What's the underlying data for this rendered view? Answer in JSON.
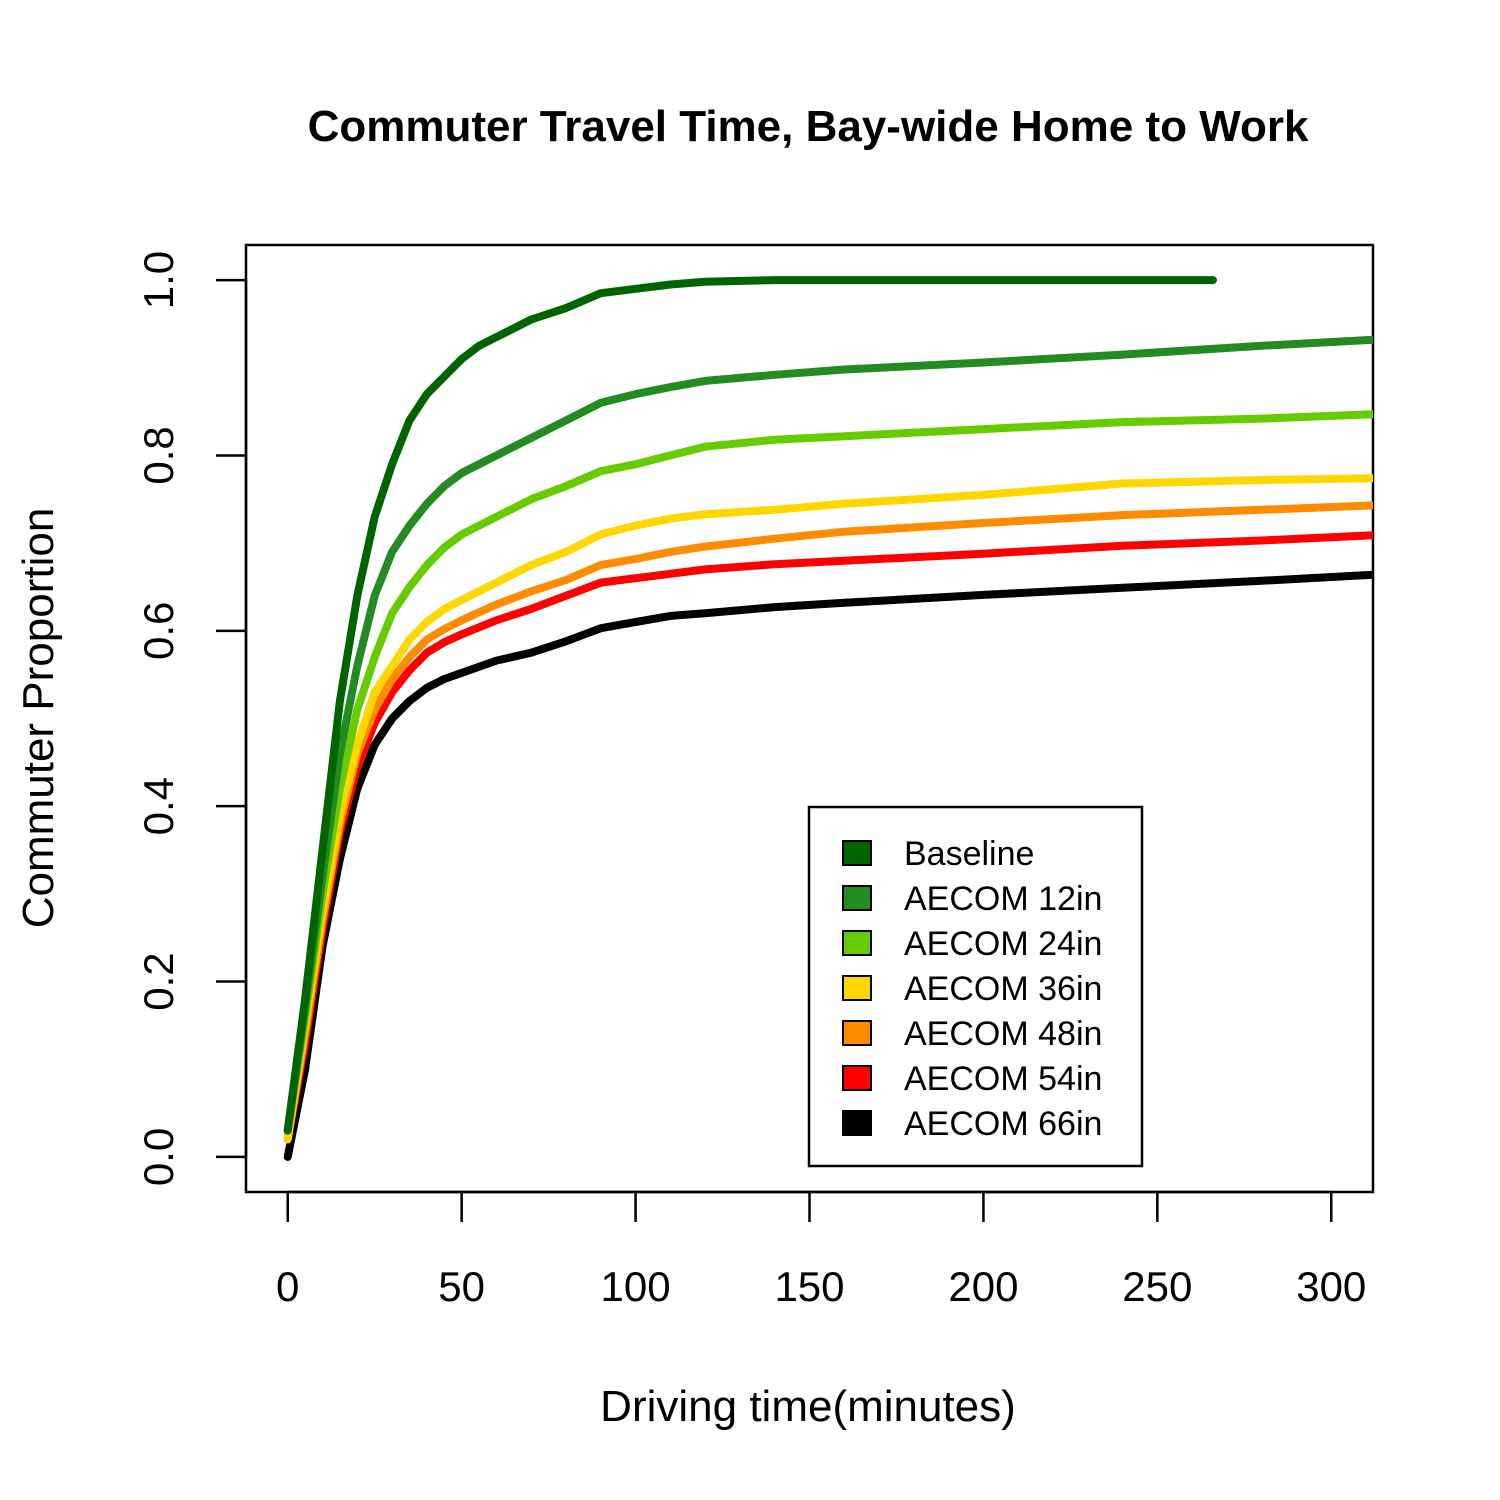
{
  "chart_data": {
    "type": "line",
    "title": "Commuter Travel Time, Bay-wide Home to Work",
    "xlabel": "Driving time(minutes)",
    "ylabel": "Commuter Proportion",
    "xlim": [
      -12,
      312
    ],
    "ylim": [
      -0.04,
      1.04
    ],
    "x_ticks": [
      0,
      50,
      100,
      150,
      200,
      250,
      300
    ],
    "y_ticks": [
      0.0,
      0.2,
      0.4,
      0.6,
      0.8,
      1.0
    ],
    "y_tick_labels": [
      "0.0",
      "0.2",
      "0.4",
      "0.6",
      "0.8",
      "1.0"
    ],
    "grid": false,
    "legend_position": "bottom-right",
    "series": [
      {
        "name": "Baseline",
        "color": "#006400",
        "x": [
          0,
          5,
          10,
          15,
          20,
          25,
          30,
          35,
          40,
          45,
          50,
          55,
          60,
          70,
          80,
          90,
          100,
          110,
          120,
          140,
          160,
          200,
          240,
          266
        ],
        "y": [
          0.03,
          0.18,
          0.35,
          0.52,
          0.64,
          0.73,
          0.79,
          0.84,
          0.87,
          0.89,
          0.91,
          0.925,
          0.935,
          0.955,
          0.968,
          0.985,
          0.99,
          0.995,
          0.998,
          1.0,
          1.0,
          1.0,
          1.0,
          1.0
        ]
      },
      {
        "name": "AECOM 12in",
        "color": "#228B22",
        "x": [
          0,
          5,
          10,
          15,
          20,
          25,
          30,
          35,
          40,
          45,
          50,
          60,
          70,
          80,
          90,
          100,
          110,
          120,
          140,
          160,
          200,
          240,
          280,
          312
        ],
        "y": [
          0.03,
          0.17,
          0.32,
          0.46,
          0.56,
          0.64,
          0.69,
          0.72,
          0.745,
          0.765,
          0.78,
          0.8,
          0.82,
          0.84,
          0.86,
          0.87,
          0.878,
          0.885,
          0.892,
          0.898,
          0.906,
          0.915,
          0.925,
          0.932
        ]
      },
      {
        "name": "AECOM 24in",
        "color": "#66CC00",
        "x": [
          0,
          5,
          10,
          15,
          20,
          25,
          30,
          35,
          40,
          45,
          50,
          60,
          70,
          80,
          90,
          100,
          110,
          120,
          140,
          160,
          200,
          240,
          280,
          312
        ],
        "y": [
          0.03,
          0.16,
          0.3,
          0.42,
          0.51,
          0.57,
          0.62,
          0.65,
          0.675,
          0.695,
          0.71,
          0.73,
          0.75,
          0.765,
          0.782,
          0.79,
          0.8,
          0.81,
          0.818,
          0.822,
          0.83,
          0.838,
          0.842,
          0.847
        ]
      },
      {
        "name": "AECOM 36in",
        "color": "#FFD700",
        "x": [
          0,
          5,
          10,
          15,
          20,
          25,
          30,
          35,
          40,
          45,
          50,
          60,
          70,
          80,
          90,
          100,
          110,
          120,
          140,
          160,
          200,
          240,
          280,
          312
        ],
        "y": [
          0.02,
          0.15,
          0.28,
          0.39,
          0.47,
          0.53,
          0.56,
          0.59,
          0.61,
          0.625,
          0.635,
          0.655,
          0.675,
          0.69,
          0.71,
          0.72,
          0.728,
          0.733,
          0.738,
          0.745,
          0.755,
          0.768,
          0.772,
          0.774
        ]
      },
      {
        "name": "AECOM 48in",
        "color": "#FF8C00",
        "x": [
          0,
          5,
          10,
          15,
          20,
          25,
          30,
          35,
          40,
          45,
          50,
          60,
          70,
          80,
          90,
          100,
          110,
          120,
          140,
          160,
          200,
          240,
          280,
          312
        ],
        "y": [
          0.02,
          0.14,
          0.27,
          0.38,
          0.46,
          0.51,
          0.545,
          0.57,
          0.59,
          0.602,
          0.612,
          0.63,
          0.645,
          0.658,
          0.675,
          0.682,
          0.69,
          0.696,
          0.705,
          0.713,
          0.723,
          0.732,
          0.738,
          0.743
        ]
      },
      {
        "name": "AECOM 54in",
        "color": "#FF0000",
        "x": [
          0,
          5,
          10,
          15,
          20,
          25,
          30,
          35,
          40,
          45,
          50,
          60,
          70,
          80,
          90,
          100,
          110,
          120,
          140,
          160,
          200,
          240,
          280,
          312
        ],
        "y": [
          0.02,
          0.13,
          0.26,
          0.37,
          0.445,
          0.495,
          0.53,
          0.555,
          0.575,
          0.587,
          0.596,
          0.612,
          0.625,
          0.64,
          0.655,
          0.66,
          0.665,
          0.67,
          0.676,
          0.68,
          0.688,
          0.697,
          0.703,
          0.709
        ]
      },
      {
        "name": "AECOM 66in",
        "color": "#000000",
        "x": [
          0,
          5,
          10,
          15,
          20,
          25,
          30,
          35,
          40,
          45,
          50,
          60,
          70,
          80,
          90,
          100,
          110,
          120,
          140,
          160,
          200,
          240,
          280,
          312
        ],
        "y": [
          0.0,
          0.1,
          0.24,
          0.34,
          0.42,
          0.47,
          0.5,
          0.52,
          0.535,
          0.545,
          0.552,
          0.566,
          0.575,
          0.588,
          0.603,
          0.61,
          0.617,
          0.62,
          0.627,
          0.632,
          0.641,
          0.649,
          0.657,
          0.664
        ]
      }
    ]
  }
}
